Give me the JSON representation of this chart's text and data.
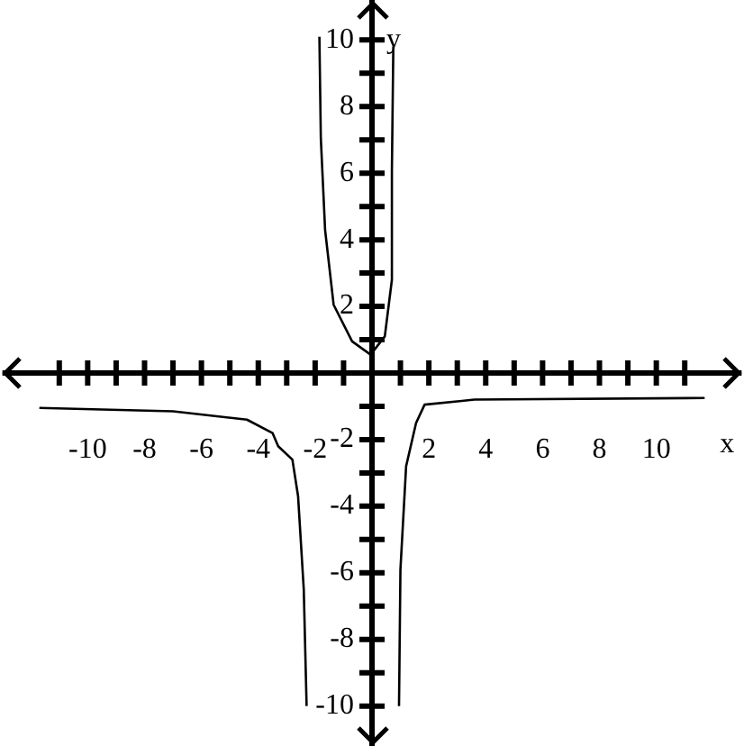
{
  "chart_data": {
    "type": "line",
    "xlabel": "x",
    "ylabel": "y",
    "xlim": [
      -13,
      13
    ],
    "ylim": [
      -11.2,
      11.2
    ],
    "xticks": [
      {
        "value": -11,
        "label": null
      },
      -10,
      {
        "value": -9,
        "label": null
      },
      -8,
      {
        "value": -7,
        "label": null
      },
      -6,
      {
        "value": -5,
        "label": null
      },
      -4,
      {
        "value": -3,
        "label": null
      },
      -2,
      {
        "value": -1,
        "label": null
      },
      {
        "value": 0,
        "label": null
      },
      {
        "value": 1,
        "label": null
      },
      2,
      {
        "value": 3,
        "label": null
      },
      4,
      {
        "value": 5,
        "label": null
      },
      6,
      {
        "value": 7,
        "label": null
      },
      8,
      {
        "value": 9,
        "label": null
      },
      10,
      {
        "value": 11,
        "label": null
      }
    ],
    "yticks": [
      -10,
      {
        "value": -9,
        "label": null
      },
      -8,
      {
        "value": -7,
        "label": null
      },
      -6,
      {
        "value": -5,
        "label": null
      },
      -4,
      {
        "value": -3,
        "label": null
      },
      -2,
      {
        "value": -1,
        "label": null
      },
      {
        "value": 0,
        "label": null
      },
      {
        "value": 1,
        "label": null
      },
      2,
      {
        "value": 3,
        "label": null
      },
      4,
      {
        "value": 5,
        "label": null
      },
      6,
      {
        "value": 7,
        "label": null
      },
      8,
      {
        "value": 9,
        "label": null
      },
      10
    ],
    "grid": false,
    "legend": false,
    "marker": "none",
    "line_style": "solid",
    "series": [
      {
        "type": "line",
        "color": "#000000",
        "x": [
          -11.7,
          -7,
          -4.4,
          -3.5,
          -3.3,
          -2.8,
          -2.6,
          -2.4,
          -2.3
        ],
        "values": [
          -1.05,
          -1.15,
          -1.4,
          -1.8,
          -2.2,
          -2.6,
          -3.7,
          -6.5,
          -10
        ]
      },
      {
        "type": "line",
        "color": "#000000",
        "x": [
          -1.85,
          -1.8,
          -1.65,
          -1.35,
          -0.7,
          -0.05,
          0.45,
          0.7,
          0.7,
          0.75
        ],
        "values": [
          10.1,
          7.05,
          4.3,
          2.05,
          0.95,
          0.55,
          1.1,
          2.8,
          6.1,
          9.8
        ]
      },
      {
        "type": "line",
        "color": "#000000",
        "x": [
          0.95,
          1.0,
          1.2,
          1.55,
          1.85,
          3.6,
          11.7
        ],
        "values": [
          -10,
          -5.9,
          -2.8,
          -1.5,
          -0.95,
          -0.8,
          -0.75
        ]
      }
    ]
  }
}
